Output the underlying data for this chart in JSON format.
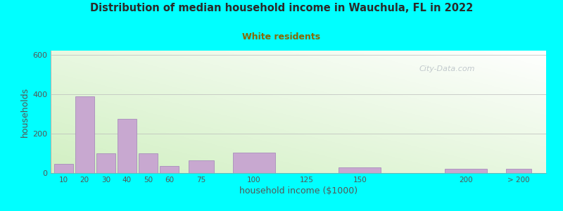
{
  "title": "Distribution of median household income in Wauchula, FL in 2022",
  "subtitle": "White residents",
  "xlabel": "household income ($1000)",
  "ylabel": "households",
  "background_outer": "#00FFFF",
  "bar_color": "#C8A8D0",
  "bar_edge_color": "#A080B8",
  "subtitle_color": "#888800",
  "title_color": "#333333",
  "watermark": "City-Data.com",
  "ylim": [
    0,
    620
  ],
  "yticks": [
    0,
    200,
    400,
    600
  ],
  "bar_positions": [
    10,
    20,
    30,
    40,
    50,
    60,
    75,
    100,
    150,
    200,
    225
  ],
  "bar_values": [
    45,
    390,
    100,
    275,
    100,
    35,
    65,
    105,
    30,
    20,
    20
  ],
  "bar_widths": [
    9,
    9,
    9,
    9,
    9,
    9,
    12,
    20,
    20,
    20,
    12
  ],
  "xtick_positions": [
    10,
    20,
    30,
    40,
    50,
    60,
    75,
    100,
    125,
    150,
    200
  ],
  "xtick_labels": [
    "10",
    "20",
    "30",
    "40",
    "50",
    "60",
    "75",
    "100",
    "125",
    "150",
    "200"
  ],
  "xlim": [
    4,
    238
  ]
}
